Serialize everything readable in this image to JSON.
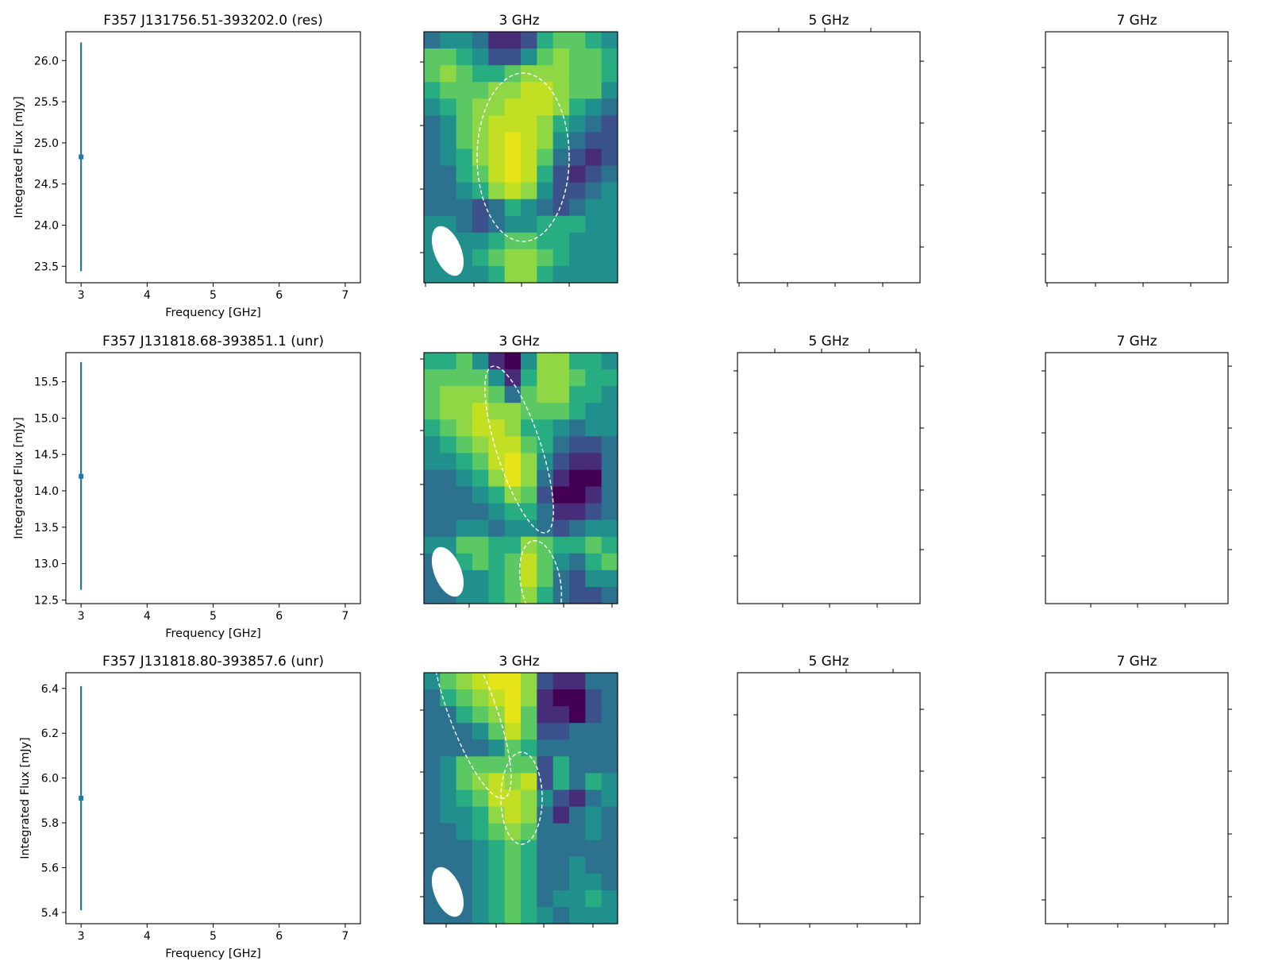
{
  "chart_data": [
    {
      "type": "scatter",
      "title": "F357 J131756.51-393202.0 (res)",
      "xlabel": "Frequency [GHz]",
      "ylabel": "Integrated Flux [mJy]",
      "xlim": [
        2.77,
        7.23
      ],
      "ylim": [
        23.3,
        26.35
      ],
      "xticks": [
        "3",
        "4",
        "5",
        "6",
        "7"
      ],
      "yticks": [
        "23.5",
        "24.0",
        "24.5",
        "25.0",
        "25.5",
        "26.0"
      ],
      "ytick_values": [
        23.5,
        24.0,
        24.5,
        25.0,
        25.5,
        26.0
      ],
      "points": [
        {
          "x": 3,
          "y": 24.83,
          "err_low": 23.44,
          "err_high": 26.22
        }
      ],
      "color": "#1f77b4",
      "maps": [
        {
          "title": "3 GHz",
          "has_image": true
        },
        {
          "title": "5 GHz",
          "has_image": false
        },
        {
          "title": "7 GHz",
          "has_image": false
        }
      ]
    },
    {
      "type": "scatter",
      "title": "F357 J131818.68-393851.1 (unr)",
      "xlabel": "Frequency [GHz]",
      "ylabel": "Integrated Flux [mJy]",
      "xlim": [
        2.77,
        7.23
      ],
      "ylim": [
        12.45,
        15.9
      ],
      "xticks": [
        "3",
        "4",
        "5",
        "6",
        "7"
      ],
      "yticks": [
        "12.5",
        "13.0",
        "13.5",
        "14.0",
        "14.5",
        "15.0",
        "15.5"
      ],
      "ytick_values": [
        12.5,
        13.0,
        13.5,
        14.0,
        14.5,
        15.0,
        15.5
      ],
      "points": [
        {
          "x": 3,
          "y": 14.2,
          "err_low": 12.64,
          "err_high": 15.77
        }
      ],
      "color": "#1f77b4",
      "maps": [
        {
          "title": "3 GHz",
          "has_image": true
        },
        {
          "title": "5 GHz",
          "has_image": false
        },
        {
          "title": "7 GHz",
          "has_image": false
        }
      ]
    },
    {
      "type": "scatter",
      "title": "F357 J131818.80-393857.6 (unr)",
      "xlabel": "Frequency [GHz]",
      "ylabel": "Integrated Flux [mJy]",
      "xlim": [
        2.77,
        7.23
      ],
      "ylim": [
        5.35,
        6.47
      ],
      "xticks": [
        "3",
        "4",
        "5",
        "6",
        "7"
      ],
      "yticks": [
        "5.4",
        "5.6",
        "5.8",
        "6.0",
        "6.2",
        "6.4"
      ],
      "ytick_values": [
        5.4,
        5.6,
        5.8,
        6.0,
        6.2,
        6.4
      ],
      "points": [
        {
          "x": 3,
          "y": 5.91,
          "err_low": 5.41,
          "err_high": 6.41
        }
      ],
      "color": "#1f77b4",
      "maps": [
        {
          "title": "3 GHz",
          "has_image": true
        },
        {
          "title": "5 GHz",
          "has_image": false
        },
        {
          "title": "7 GHz",
          "has_image": false
        }
      ]
    }
  ],
  "heatmaps": [
    [
      [
        3,
        4,
        4,
        3,
        1,
        1,
        2,
        5,
        6,
        6,
        5,
        4
      ],
      [
        6,
        6,
        5,
        4,
        2,
        2,
        4,
        6,
        7,
        6,
        6,
        5
      ],
      [
        6,
        7,
        6,
        5,
        5,
        6,
        7,
        7,
        7,
        6,
        6,
        5
      ],
      [
        5,
        6,
        6,
        6,
        7,
        7,
        8,
        8,
        7,
        6,
        6,
        4
      ],
      [
        4,
        5,
        6,
        7,
        7,
        8,
        8,
        8,
        7,
        5,
        4,
        3
      ],
      [
        3,
        4,
        6,
        7,
        8,
        8,
        8,
        7,
        5,
        4,
        3,
        2
      ],
      [
        3,
        4,
        6,
        7,
        8,
        9,
        8,
        7,
        4,
        3,
        2,
        2
      ],
      [
        3,
        4,
        5,
        7,
        8,
        9,
        8,
        6,
        3,
        2,
        1,
        2
      ],
      [
        3,
        3,
        5,
        6,
        8,
        9,
        8,
        5,
        2,
        1,
        2,
        3
      ],
      [
        3,
        3,
        4,
        5,
        7,
        8,
        7,
        4,
        2,
        2,
        3,
        4
      ],
      [
        3,
        3,
        3,
        2,
        3,
        5,
        4,
        3,
        2,
        3,
        4,
        4
      ],
      [
        4,
        4,
        3,
        2,
        3,
        4,
        4,
        5,
        5,
        5,
        4,
        4
      ],
      [
        4,
        4,
        4,
        4,
        5,
        6,
        6,
        5,
        5,
        4,
        4,
        4
      ],
      [
        4,
        4,
        4,
        5,
        6,
        7,
        7,
        6,
        5,
        4,
        4,
        4
      ],
      [
        4,
        4,
        4,
        4,
        5,
        7,
        7,
        5,
        4,
        4,
        4,
        4
      ]
    ],
    [
      [
        5,
        5,
        6,
        4,
        1,
        0,
        4,
        7,
        7,
        5,
        5,
        4
      ],
      [
        6,
        6,
        6,
        6,
        4,
        1,
        5,
        7,
        7,
        6,
        5,
        5
      ],
      [
        6,
        7,
        7,
        7,
        6,
        3,
        6,
        7,
        7,
        5,
        5,
        4
      ],
      [
        6,
        7,
        7,
        8,
        7,
        7,
        6,
        6,
        6,
        5,
        4,
        4
      ],
      [
        5,
        6,
        7,
        8,
        8,
        7,
        5,
        5,
        4,
        3,
        4,
        4
      ],
      [
        4,
        5,
        6,
        7,
        8,
        8,
        6,
        5,
        3,
        2,
        2,
        3
      ],
      [
        4,
        4,
        5,
        6,
        8,
        9,
        7,
        4,
        2,
        1,
        1,
        3
      ],
      [
        3,
        3,
        4,
        5,
        7,
        9,
        7,
        3,
        1,
        0,
        0,
        3
      ],
      [
        3,
        3,
        3,
        4,
        5,
        7,
        6,
        2,
        0,
        0,
        1,
        3
      ],
      [
        3,
        3,
        3,
        3,
        4,
        5,
        5,
        3,
        1,
        1,
        2,
        3
      ],
      [
        3,
        3,
        4,
        4,
        3,
        4,
        4,
        3,
        2,
        3,
        4,
        4
      ],
      [
        4,
        4,
        6,
        6,
        5,
        5,
        7,
        6,
        5,
        5,
        6,
        5
      ],
      [
        3,
        4,
        5,
        6,
        5,
        6,
        8,
        6,
        4,
        3,
        5,
        6
      ],
      [
        3,
        3,
        4,
        4,
        5,
        6,
        8,
        6,
        3,
        2,
        4,
        4
      ],
      [
        3,
        3,
        4,
        4,
        5,
        6,
        7,
        5,
        3,
        2,
        2,
        3
      ]
    ],
    [
      [
        4,
        6,
        7,
        8,
        9,
        9,
        7,
        2,
        1,
        1,
        3,
        3
      ],
      [
        3,
        5,
        6,
        7,
        8,
        9,
        7,
        1,
        0,
        0,
        2,
        3
      ],
      [
        3,
        3,
        5,
        6,
        7,
        9,
        6,
        1,
        1,
        0,
        2,
        3
      ],
      [
        3,
        3,
        3,
        4,
        6,
        8,
        6,
        2,
        2,
        3,
        3,
        3
      ],
      [
        3,
        3,
        3,
        3,
        4,
        6,
        5,
        3,
        3,
        3,
        3,
        3
      ],
      [
        3,
        4,
        6,
        6,
        6,
        6,
        6,
        2,
        5,
        3,
        3,
        3
      ],
      [
        3,
        4,
        6,
        7,
        8,
        7,
        8,
        2,
        5,
        3,
        5,
        4
      ],
      [
        3,
        4,
        5,
        6,
        8,
        8,
        7,
        4,
        2,
        1,
        3,
        4
      ],
      [
        3,
        4,
        4,
        5,
        7,
        8,
        7,
        3,
        1,
        3,
        4,
        3
      ],
      [
        3,
        3,
        4,
        5,
        6,
        7,
        6,
        3,
        3,
        3,
        4,
        3
      ],
      [
        3,
        3,
        3,
        4,
        5,
        6,
        5,
        3,
        3,
        3,
        3,
        3
      ],
      [
        3,
        3,
        3,
        4,
        5,
        6,
        5,
        3,
        3,
        4,
        3,
        3
      ],
      [
        3,
        3,
        3,
        4,
        5,
        6,
        5,
        3,
        3,
        4,
        4,
        3
      ],
      [
        3,
        3,
        3,
        4,
        5,
        6,
        5,
        3,
        4,
        4,
        5,
        4
      ],
      [
        3,
        3,
        3,
        4,
        5,
        6,
        5,
        4,
        3,
        4,
        4,
        4
      ]
    ]
  ]
}
